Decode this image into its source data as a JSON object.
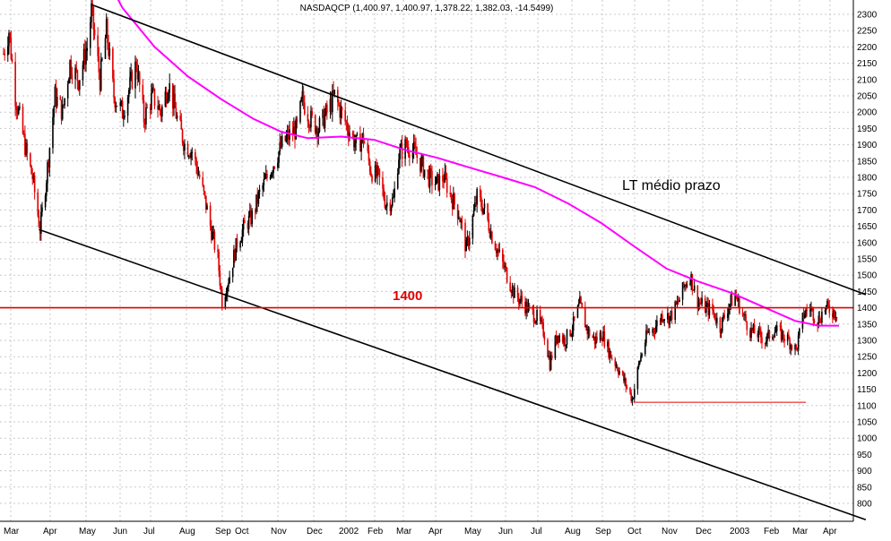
{
  "header": {
    "quote": "NASDAQCP (1,400.97, 1,400.97, 1,378.22, 1,382.03, -14.5499)"
  },
  "chart_data": {
    "type": "candlestick",
    "title": "NASDAQCP (1,400.97, 1,400.97, 1,378.22, 1,382.03, -14.5499)",
    "xlabel": "",
    "ylabel": "",
    "grid": true,
    "ylim": [
      750,
      2320
    ],
    "y_ticks": [
      800,
      850,
      900,
      950,
      1000,
      1050,
      1100,
      1150,
      1200,
      1250,
      1300,
      1350,
      1400,
      1450,
      1500,
      1550,
      1600,
      1650,
      1700,
      1750,
      1800,
      1850,
      1900,
      1950,
      2000,
      2050,
      2100,
      2150,
      2200,
      2250,
      2300
    ],
    "x_ticks": [
      "Mar",
      "Apr",
      "May",
      "Jun",
      "Jul",
      "Aug",
      "Sep",
      "Oct",
      "Nov",
      "Dec",
      "2002",
      "Feb",
      "Mar",
      "Apr",
      "May",
      "Jun",
      "Jul",
      "Aug",
      "Sep",
      "Oct",
      "Nov",
      "Dec",
      "2003",
      "Feb",
      "Mar",
      "Apr"
    ],
    "x_start": "2001-03-01",
    "x_end": "2003-04-25",
    "price_series": [
      [
        "2001-03-01",
        2180
      ],
      [
        "2001-03-06",
        2250
      ],
      [
        "2001-03-12",
        2050
      ],
      [
        "2001-03-15",
        2000
      ],
      [
        "2001-03-22",
        1880
      ],
      [
        "2001-03-28",
        1800
      ],
      [
        "2001-04-04",
        1640
      ],
      [
        "2001-04-10",
        1800
      ],
      [
        "2001-04-18",
        2050
      ],
      [
        "2001-04-25",
        2000
      ],
      [
        "2001-05-02",
        2150
      ],
      [
        "2001-05-10",
        2100
      ],
      [
        "2001-05-18",
        2200
      ],
      [
        "2001-05-22",
        2310
      ],
      [
        "2001-05-30",
        2100
      ],
      [
        "2001-06-05",
        2250
      ],
      [
        "2001-06-12",
        2050
      ],
      [
        "2001-06-20",
        2000
      ],
      [
        "2001-06-27",
        2080
      ],
      [
        "2001-07-03",
        2150
      ],
      [
        "2001-07-10",
        1980
      ],
      [
        "2001-07-18",
        2050
      ],
      [
        "2001-07-26",
        2000
      ],
      [
        "2001-08-02",
        2090
      ],
      [
        "2001-08-10",
        1980
      ],
      [
        "2001-08-17",
        1900
      ],
      [
        "2001-08-24",
        1880
      ],
      [
        "2001-08-31",
        1800
      ],
      [
        "2001-09-07",
        1700
      ],
      [
        "2001-09-10",
        1650
      ],
      [
        "2001-09-17",
        1550
      ],
      [
        "2001-09-21",
        1420
      ],
      [
        "2001-09-28",
        1500
      ],
      [
        "2001-10-05",
        1600
      ],
      [
        "2001-10-12",
        1650
      ],
      [
        "2001-10-19",
        1680
      ],
      [
        "2001-10-26",
        1750
      ],
      [
        "2001-11-02",
        1800
      ],
      [
        "2001-11-09",
        1850
      ],
      [
        "2001-11-16",
        1900
      ],
      [
        "2001-11-23",
        1930
      ],
      [
        "2001-11-30",
        1950
      ],
      [
        "2001-12-05",
        2040
      ],
      [
        "2001-12-12",
        1980
      ],
      [
        "2001-12-20",
        1950
      ],
      [
        "2001-12-28",
        2000
      ],
      [
        "2002-01-04",
        2050
      ],
      [
        "2002-01-10",
        2000
      ],
      [
        "2002-01-17",
        1950
      ],
      [
        "2002-01-24",
        1900
      ],
      [
        "2002-01-31",
        1920
      ],
      [
        "2002-02-07",
        1820
      ],
      [
        "2002-02-14",
        1800
      ],
      [
        "2002-02-21",
        1720
      ],
      [
        "2002-02-28",
        1730
      ],
      [
        "2002-03-05",
        1870
      ],
      [
        "2002-03-12",
        1900
      ],
      [
        "2002-03-19",
        1880
      ],
      [
        "2002-03-26",
        1840
      ],
      [
        "2002-04-02",
        1800
      ],
      [
        "2002-04-09",
        1780
      ],
      [
        "2002-04-16",
        1800
      ],
      [
        "2002-04-23",
        1740
      ],
      [
        "2002-04-30",
        1690
      ],
      [
        "2002-05-07",
        1580
      ],
      [
        "2002-05-14",
        1690
      ],
      [
        "2002-05-17",
        1740
      ],
      [
        "2002-05-24",
        1700
      ],
      [
        "2002-05-31",
        1620
      ],
      [
        "2002-06-07",
        1560
      ],
      [
        "2002-06-14",
        1500
      ],
      [
        "2002-06-21",
        1440
      ],
      [
        "2002-06-28",
        1420
      ],
      [
        "2002-07-05",
        1390
      ],
      [
        "2002-07-12",
        1370
      ],
      [
        "2002-07-19",
        1320
      ],
      [
        "2002-07-24",
        1230
      ],
      [
        "2002-07-31",
        1320
      ],
      [
        "2002-08-07",
        1300
      ],
      [
        "2002-08-14",
        1340
      ],
      [
        "2002-08-21",
        1410
      ],
      [
        "2002-08-28",
        1330
      ],
      [
        "2002-09-04",
        1300
      ],
      [
        "2002-09-11",
        1320
      ],
      [
        "2002-09-18",
        1260
      ],
      [
        "2002-09-25",
        1220
      ],
      [
        "2002-10-02",
        1170
      ],
      [
        "2002-10-09",
        1120
      ],
      [
        "2002-10-16",
        1240
      ],
      [
        "2002-10-23",
        1320
      ],
      [
        "2002-10-30",
        1340
      ],
      [
        "2002-11-06",
        1380
      ],
      [
        "2002-11-13",
        1370
      ],
      [
        "2002-11-20",
        1410
      ],
      [
        "2002-11-27",
        1470
      ],
      [
        "2002-12-02",
        1500
      ],
      [
        "2002-12-09",
        1420
      ],
      [
        "2002-12-16",
        1400
      ],
      [
        "2002-12-23",
        1390
      ],
      [
        "2002-12-30",
        1340
      ],
      [
        "2003-01-06",
        1400
      ],
      [
        "2003-01-13",
        1440
      ],
      [
        "2003-01-20",
        1380
      ],
      [
        "2003-01-27",
        1330
      ],
      [
        "2003-02-03",
        1320
      ],
      [
        "2003-02-10",
        1300
      ],
      [
        "2003-02-18",
        1330
      ],
      [
        "2003-02-25",
        1320
      ],
      [
        "2003-03-04",
        1300
      ],
      [
        "2003-03-11",
        1270
      ],
      [
        "2003-03-18",
        1380
      ],
      [
        "2003-03-24",
        1400
      ],
      [
        "2003-03-31",
        1360
      ],
      [
        "2003-04-07",
        1400
      ],
      [
        "2003-04-14",
        1390
      ],
      [
        "2003-04-21",
        1382
      ]
    ],
    "moving_average": [
      [
        "2001-05-30",
        2450
      ],
      [
        "2001-06-20",
        2320
      ],
      [
        "2001-07-20",
        2200
      ],
      [
        "2001-08-20",
        2110
      ],
      [
        "2001-09-20",
        2040
      ],
      [
        "2001-10-20",
        1980
      ],
      [
        "2001-11-15",
        1940
      ],
      [
        "2001-12-10",
        1920
      ],
      [
        "2002-01-10",
        1925
      ],
      [
        "2002-02-10",
        1915
      ],
      [
        "2002-03-10",
        1885
      ],
      [
        "2002-04-10",
        1860
      ],
      [
        "2002-05-10",
        1830
      ],
      [
        "2002-06-10",
        1800
      ],
      [
        "2002-07-10",
        1770
      ],
      [
        "2002-08-10",
        1720
      ],
      [
        "2002-09-10",
        1660
      ],
      [
        "2002-10-10",
        1590
      ],
      [
        "2002-11-10",
        1520
      ],
      [
        "2002-12-10",
        1480
      ],
      [
        "2003-01-10",
        1445
      ],
      [
        "2003-02-10",
        1400
      ],
      [
        "2003-03-10",
        1360
      ],
      [
        "2003-04-01",
        1345
      ],
      [
        "2003-04-20",
        1345
      ]
    ],
    "annotations": [
      {
        "type": "trendline",
        "label": "LT médio prazo",
        "points": [
          [
            "2001-05-22",
            2330
          ],
          [
            "2003-05-15",
            1440
          ]
        ]
      },
      {
        "type": "trendline",
        "label": "",
        "points": [
          [
            "2001-04-03",
            1640
          ],
          [
            "2003-05-15",
            750
          ]
        ]
      },
      {
        "type": "hline",
        "label": "1400",
        "y": 1400
      },
      {
        "type": "support",
        "label": "",
        "y": 1110,
        "x_range": [
          "2002-10-10",
          "2003-03-20"
        ]
      }
    ]
  }
}
